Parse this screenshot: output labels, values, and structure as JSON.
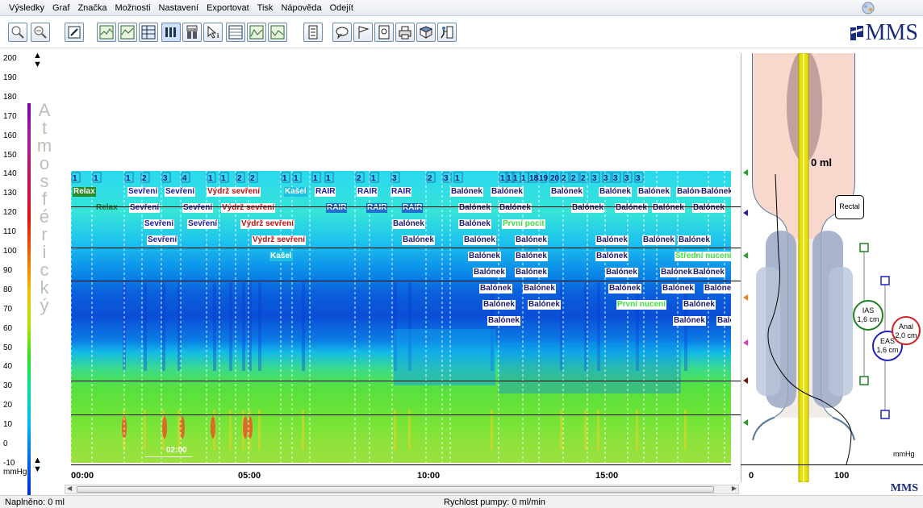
{
  "menu": [
    "Výsledky",
    "Graf",
    "Značka",
    "Možnosti",
    "Nastavení",
    "Exportovat",
    "Tisk",
    "Nápověda",
    "Odejít"
  ],
  "toolbar": {
    "buttons": [
      "zoom-in-icon",
      "zoom-out-icon",
      "edit-icon",
      "chart-line-icon",
      "chart-area-icon",
      "table-icon",
      "bars-icon",
      "rectal-icon",
      "cursor-info-icon",
      "grid-icon",
      "chart-a-icon",
      "chart-b-icon",
      "report-icon",
      "speech-icon",
      "flag-icon",
      "print-preview-icon",
      "print-icon",
      "book-icon",
      "exit-icon"
    ],
    "rectal_label": "rectal"
  },
  "logo": {
    "text": "MMS"
  },
  "y_axis": {
    "ticks": [
      "200",
      "190",
      "180",
      "170",
      "160",
      "150",
      "140",
      "130",
      "120",
      "110",
      "100",
      "90",
      "80",
      "70",
      "60",
      "50",
      "40",
      "30",
      "20",
      "10",
      "0",
      "-10"
    ],
    "unit": "mmHg",
    "title_letters": [
      "A",
      "t",
      "m",
      "o",
      "s",
      "f",
      "é",
      "r",
      "i",
      "c",
      "k",
      "ý"
    ]
  },
  "x_axis": {
    "ticks": [
      "00:00",
      "05:00",
      "10:00",
      "15:00"
    ]
  },
  "plot": {
    "scale_label": "02:00",
    "markers": [
      "1",
      "1",
      "1",
      "2",
      "3",
      "4",
      "1",
      "1",
      "2",
      "2",
      "1",
      "1",
      "1",
      "1",
      "2",
      "1",
      "3",
      "2",
      "3",
      "1",
      "1",
      "1",
      "1",
      "1",
      "18",
      "19",
      "20",
      "2",
      "2",
      "2",
      "3",
      "3",
      "3",
      "3",
      "3"
    ],
    "labels": [
      {
        "text": "Relax",
        "color": "#ffffff",
        "bg": "#2a8a2a"
      },
      {
        "text": "Relax",
        "color": "#2a6a2a",
        "bg": "transparent"
      },
      {
        "text": "Sevření",
        "color": "#1a1aa0",
        "bg": "#ffffff"
      },
      {
        "text": "Sevření",
        "color": "#1a1aa0",
        "bg": "#ffffff"
      },
      {
        "text": "Sevření",
        "color": "#1a1aa0",
        "bg": "#ffffff"
      },
      {
        "text": "Sevření",
        "color": "#1a1aa0",
        "bg": "#ffffff"
      },
      {
        "text": "Sevření",
        "color": "#1a1aa0",
        "bg": "#ffffff"
      },
      {
        "text": "Sevření",
        "color": "#1a1aa0",
        "bg": "#ffffff"
      },
      {
        "text": "Sevření",
        "color": "#1a1aa0",
        "bg": "#ffffff"
      },
      {
        "text": "Výdrž sevření",
        "color": "#c01010",
        "bg": "#ffffff"
      },
      {
        "text": "Výdrž sevření",
        "color": "#c01010",
        "bg": "#ffffff"
      },
      {
        "text": "Výdrž sevření",
        "color": "#c01010",
        "bg": "#ffffff"
      },
      {
        "text": "Výdrž sevření",
        "color": "#c01010",
        "bg": "#ffffff"
      },
      {
        "text": "Kašel",
        "color": "#ffffff",
        "bg": "#20c0e0"
      },
      {
        "text": "Kašel",
        "color": "#ffffff",
        "bg": "#20c0e0"
      },
      {
        "text": "RAIR",
        "color": "#1a1aa0",
        "bg": "#ffffff"
      },
      {
        "text": "RAIR",
        "color": "#ffffff",
        "bg": "#2070d0"
      },
      {
        "text": "RAIR",
        "color": "#1a1aa0",
        "bg": "#ffffff"
      },
      {
        "text": "RAIR",
        "color": "#ffffff",
        "bg": "#2070d0"
      },
      {
        "text": "RAIR",
        "color": "#1a1aa0",
        "bg": "#ffffff"
      },
      {
        "text": "RAIR",
        "color": "#ffffff",
        "bg": "#2070d0"
      },
      {
        "text": "Balónek",
        "color": "#1a1a70",
        "bg": "#ffffff"
      },
      {
        "text": "Balónek",
        "color": "#1a1a70",
        "bg": "#ffffff"
      },
      {
        "text": "První pocit",
        "color": "#40e040",
        "bg": "#ffffff"
      },
      {
        "text": "První nucení",
        "color": "#40e040",
        "bg": "#ffffff"
      },
      {
        "text": "Střední nucení",
        "color": "#40e040",
        "bg": "#ffffff"
      }
    ]
  },
  "right_panel": {
    "volume": "0 ml",
    "rectal": "Rectal",
    "ias": "IAS\n1,6 cm",
    "eas": "EAS\n1,6 cm",
    "anal": "Anal\n2,0 cm",
    "unit": "mmHg",
    "x_ticks": [
      "0",
      "100"
    ],
    "logo": "MMS"
  },
  "status": {
    "filled": "Naplněno: 0 ml",
    "pump_speed": "Rychlost pumpy: 0 ml/min"
  },
  "colors": {
    "accent": "#1a2a7c",
    "catheter": "#e8e000"
  }
}
